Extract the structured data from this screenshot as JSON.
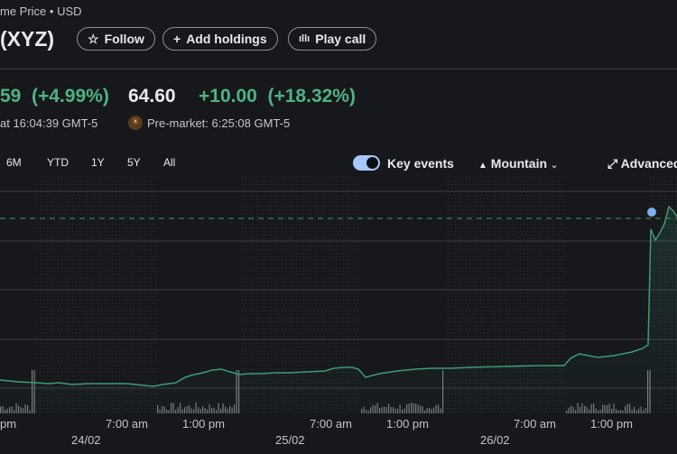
{
  "header": {
    "subtitle": "me Price • USD",
    "ticker": "(XYZ)",
    "follow_label": "Follow",
    "add_holdings_label": "Add holdings",
    "play_call_label": "Play call"
  },
  "price": {
    "close_change": "59",
    "close_change_pct": "(+4.99%)",
    "close_time": "at 16:04:39 GMT-5",
    "premarket_price": "64.60",
    "premarket_change": "+10.00",
    "premarket_change_pct": "(+18.32%)",
    "premarket_time": "Pre-market: 6:25:08 GMT-5"
  },
  "ranges": [
    "6M",
    "YTD",
    "1Y",
    "5Y",
    "All"
  ],
  "controls": {
    "key_events_label": "Key events",
    "key_events_on": true,
    "chart_type_label": "Mountain",
    "advanced_label": "Advanced"
  },
  "chart_data": {
    "type": "area",
    "x_tick_labels": [
      "pm",
      "7:00 am",
      "1:00 pm",
      "7:00 am",
      "1:00 pm",
      "7:00 am",
      "1:00 pm"
    ],
    "date_labels": [
      "24/02",
      "25/02",
      "26/02"
    ],
    "series_color": "#3d9a77",
    "accent": "#a8c7fa"
  }
}
